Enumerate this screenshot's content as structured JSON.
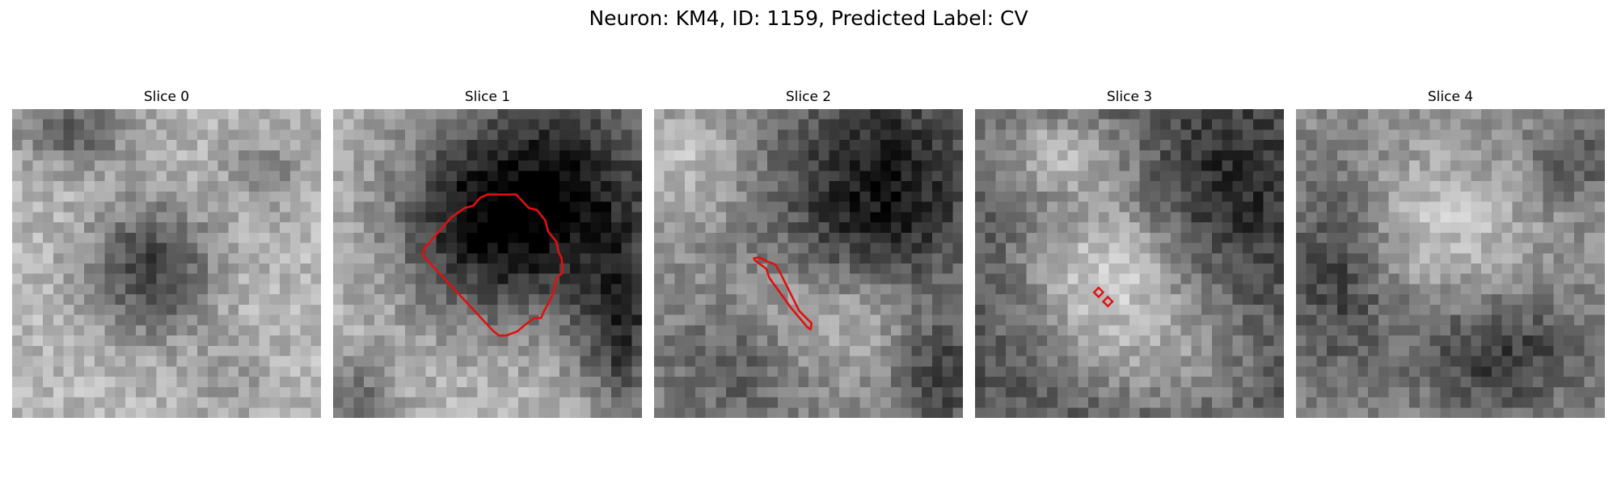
{
  "title": "Neuron: KM4, ID: 1159, Predicted Label: CV",
  "colors": {
    "contour": "#e01010",
    "background": "#ffffff"
  },
  "slices": [
    {
      "label": "Slice 0"
    },
    {
      "label": "Slice 1"
    },
    {
      "label": "Slice 2"
    },
    {
      "label": "Slice 3"
    },
    {
      "label": "Slice 4"
    }
  ]
}
